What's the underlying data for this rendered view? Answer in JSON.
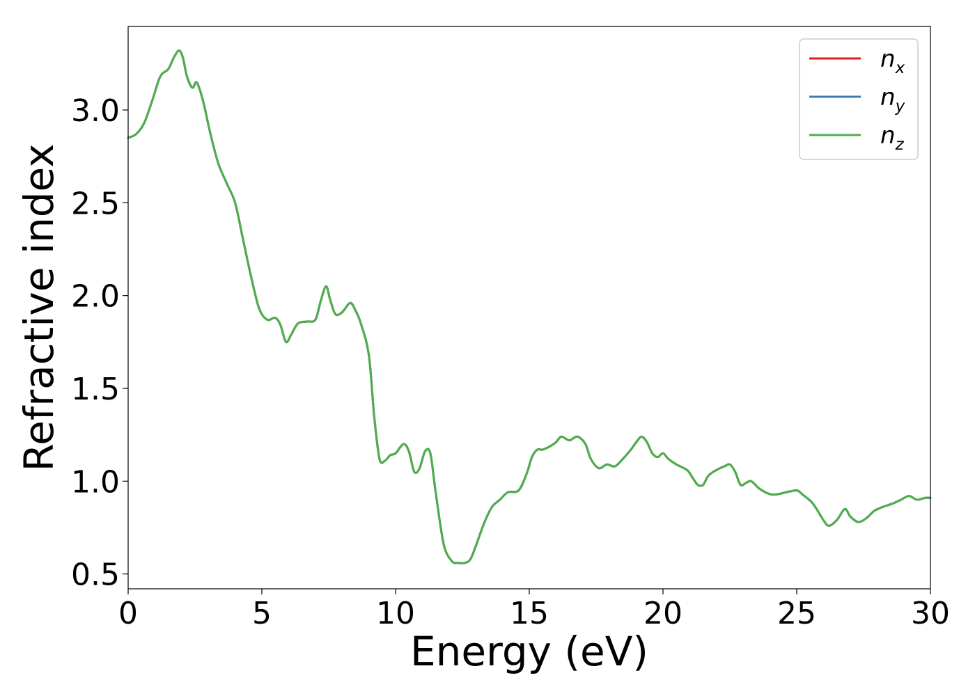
{
  "chart_data": {
    "type": "line",
    "xlabel": "Energy (eV)",
    "ylabel": "Refractive index",
    "xlim": [
      0,
      30
    ],
    "ylim": [
      0.42,
      3.45
    ],
    "x_ticks": [
      0,
      5,
      10,
      15,
      20,
      25,
      30
    ],
    "x_tick_labels": [
      "0",
      "5",
      "10",
      "15",
      "20",
      "25",
      "30"
    ],
    "y_ticks": [
      0.5,
      1.0,
      1.5,
      2.0,
      2.5,
      3.0
    ],
    "y_tick_labels": [
      "0.5",
      "1.0",
      "1.5",
      "2.0",
      "2.5",
      "3.0"
    ],
    "grid": false,
    "legend_position": "top-right",
    "colors": {
      "n_x": "#e41a1c",
      "n_y": "#377eb8",
      "n_z": "#4daf4a"
    },
    "legend": [
      {
        "key": "n_x",
        "base": "n",
        "sub": "x"
      },
      {
        "key": "n_y",
        "base": "n",
        "sub": "y"
      },
      {
        "key": "n_z",
        "base": "n",
        "sub": "z"
      }
    ],
    "x": [
      0,
      0.3,
      0.6,
      0.9,
      1.2,
      1.5,
      1.7,
      1.9,
      2.05,
      2.2,
      2.4,
      2.55,
      2.7,
      2.85,
      3.0,
      3.2,
      3.4,
      3.7,
      4.0,
      4.3,
      4.6,
      4.9,
      5.2,
      5.5,
      5.7,
      5.9,
      6.1,
      6.35,
      6.7,
      7.0,
      7.2,
      7.4,
      7.55,
      7.75,
      8.0,
      8.3,
      8.5,
      8.7,
      9.0,
      9.2,
      9.4,
      9.6,
      9.8,
      10.0,
      10.3,
      10.5,
      10.7,
      10.9,
      11.1,
      11.3,
      11.5,
      11.8,
      12.1,
      12.3,
      12.6,
      12.8,
      13.0,
      13.3,
      13.6,
      13.9,
      14.2,
      14.6,
      14.9,
      15.1,
      15.3,
      15.5,
      15.8,
      16.0,
      16.2,
      16.5,
      16.8,
      17.1,
      17.3,
      17.6,
      17.9,
      18.2,
      18.5,
      18.8,
      19.0,
      19.2,
      19.4,
      19.6,
      19.8,
      20.0,
      20.2,
      20.5,
      20.9,
      21.1,
      21.3,
      21.5,
      21.7,
      22.0,
      22.3,
      22.5,
      22.7,
      22.9,
      23.1,
      23.3,
      23.6,
      24.0,
      24.3,
      24.6,
      25.0,
      25.2,
      25.6,
      26.0,
      26.2,
      26.5,
      26.8,
      27.0,
      27.3,
      27.6,
      27.9,
      28.2,
      28.6,
      28.9,
      29.2,
      29.5,
      29.8,
      30.0
    ],
    "series": [
      {
        "key": "n_x",
        "values": [
          2.85,
          2.87,
          2.93,
          3.05,
          3.18,
          3.22,
          3.28,
          3.32,
          3.28,
          3.18,
          3.12,
          3.15,
          3.1,
          3.02,
          2.92,
          2.8,
          2.7,
          2.6,
          2.5,
          2.3,
          2.1,
          1.93,
          1.87,
          1.88,
          1.84,
          1.75,
          1.79,
          1.85,
          1.86,
          1.87,
          1.97,
          2.05,
          1.98,
          1.9,
          1.91,
          1.96,
          1.92,
          1.85,
          1.68,
          1.35,
          1.12,
          1.11,
          1.14,
          1.15,
          1.2,
          1.16,
          1.05,
          1.07,
          1.16,
          1.15,
          0.94,
          0.66,
          0.57,
          0.56,
          0.56,
          0.58,
          0.65,
          0.77,
          0.86,
          0.9,
          0.94,
          0.95,
          1.04,
          1.13,
          1.17,
          1.17,
          1.19,
          1.21,
          1.24,
          1.22,
          1.24,
          1.2,
          1.12,
          1.07,
          1.09,
          1.08,
          1.12,
          1.17,
          1.21,
          1.24,
          1.21,
          1.15,
          1.13,
          1.15,
          1.12,
          1.09,
          1.06,
          1.02,
          0.98,
          0.98,
          1.03,
          1.06,
          1.08,
          1.09,
          1.05,
          0.98,
          0.99,
          1.0,
          0.96,
          0.93,
          0.93,
          0.94,
          0.95,
          0.93,
          0.88,
          0.79,
          0.76,
          0.79,
          0.85,
          0.81,
          0.78,
          0.8,
          0.84,
          0.86,
          0.88,
          0.9,
          0.92,
          0.9,
          0.91,
          0.91
        ]
      },
      {
        "key": "n_y",
        "values": [
          2.85,
          2.87,
          2.93,
          3.05,
          3.18,
          3.22,
          3.28,
          3.32,
          3.28,
          3.18,
          3.12,
          3.15,
          3.1,
          3.02,
          2.92,
          2.8,
          2.7,
          2.6,
          2.5,
          2.3,
          2.1,
          1.93,
          1.87,
          1.88,
          1.84,
          1.75,
          1.79,
          1.85,
          1.86,
          1.87,
          1.97,
          2.05,
          1.98,
          1.9,
          1.91,
          1.96,
          1.92,
          1.85,
          1.68,
          1.35,
          1.12,
          1.11,
          1.14,
          1.15,
          1.2,
          1.16,
          1.05,
          1.07,
          1.16,
          1.15,
          0.94,
          0.66,
          0.57,
          0.56,
          0.56,
          0.58,
          0.65,
          0.77,
          0.86,
          0.9,
          0.94,
          0.95,
          1.04,
          1.13,
          1.17,
          1.17,
          1.19,
          1.21,
          1.24,
          1.22,
          1.24,
          1.2,
          1.12,
          1.07,
          1.09,
          1.08,
          1.12,
          1.17,
          1.21,
          1.24,
          1.21,
          1.15,
          1.13,
          1.15,
          1.12,
          1.09,
          1.06,
          1.02,
          0.98,
          0.98,
          1.03,
          1.06,
          1.08,
          1.09,
          1.05,
          0.98,
          0.99,
          1.0,
          0.96,
          0.93,
          0.93,
          0.94,
          0.95,
          0.93,
          0.88,
          0.79,
          0.76,
          0.79,
          0.85,
          0.81,
          0.78,
          0.8,
          0.84,
          0.86,
          0.88,
          0.9,
          0.92,
          0.9,
          0.91,
          0.91
        ]
      },
      {
        "key": "n_z",
        "values": [
          2.85,
          2.87,
          2.93,
          3.05,
          3.18,
          3.22,
          3.28,
          3.32,
          3.28,
          3.18,
          3.12,
          3.15,
          3.1,
          3.02,
          2.92,
          2.8,
          2.7,
          2.6,
          2.5,
          2.3,
          2.1,
          1.93,
          1.87,
          1.88,
          1.84,
          1.75,
          1.79,
          1.85,
          1.86,
          1.87,
          1.97,
          2.05,
          1.98,
          1.9,
          1.91,
          1.96,
          1.92,
          1.85,
          1.68,
          1.35,
          1.12,
          1.11,
          1.14,
          1.15,
          1.2,
          1.16,
          1.05,
          1.07,
          1.16,
          1.15,
          0.94,
          0.66,
          0.57,
          0.56,
          0.56,
          0.58,
          0.65,
          0.77,
          0.86,
          0.9,
          0.94,
          0.95,
          1.04,
          1.13,
          1.17,
          1.17,
          1.19,
          1.21,
          1.24,
          1.22,
          1.24,
          1.2,
          1.12,
          1.07,
          1.09,
          1.08,
          1.12,
          1.17,
          1.21,
          1.24,
          1.21,
          1.15,
          1.13,
          1.15,
          1.12,
          1.09,
          1.06,
          1.02,
          0.98,
          0.98,
          1.03,
          1.06,
          1.08,
          1.09,
          1.05,
          0.98,
          0.99,
          1.0,
          0.96,
          0.93,
          0.93,
          0.94,
          0.95,
          0.93,
          0.88,
          0.79,
          0.76,
          0.79,
          0.85,
          0.81,
          0.78,
          0.8,
          0.84,
          0.86,
          0.88,
          0.9,
          0.92,
          0.9,
          0.91,
          0.91
        ]
      }
    ]
  }
}
